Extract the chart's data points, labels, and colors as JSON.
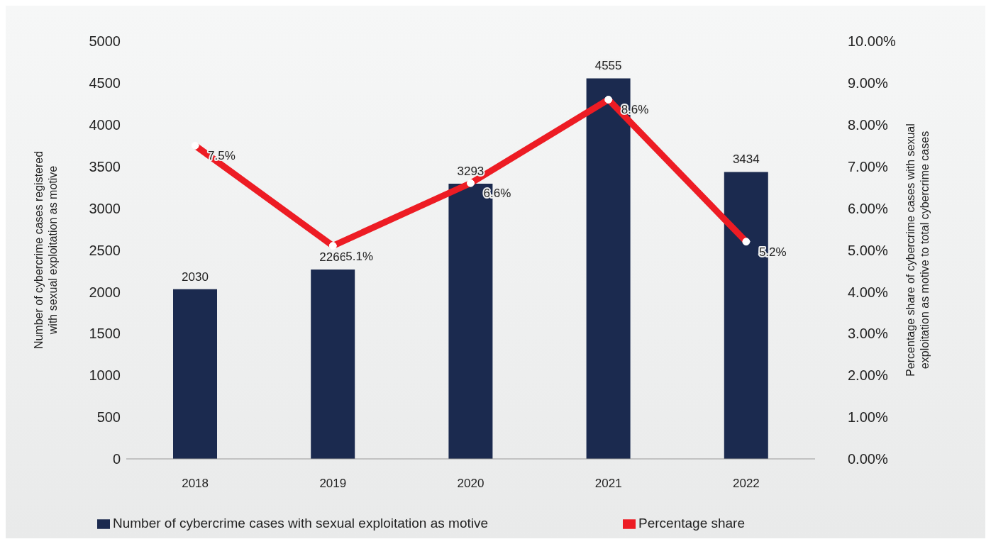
{
  "chart_data": {
    "type": "bar",
    "categories": [
      "2018",
      "2019",
      "2020",
      "2021",
      "2022"
    ],
    "series": [
      {
        "name": "Number of cybercrime cases with sexual exploitation as motive",
        "color": "#1b2a4f",
        "values": [
          2030,
          2266,
          3293,
          4555,
          3434
        ],
        "value_labels": [
          "2030",
          "2266",
          "3293",
          "4555",
          "3434"
        ]
      },
      {
        "name": "Percentage share",
        "type": "line",
        "axis": "y2",
        "color": "#ed1c24",
        "values": [
          7.5,
          5.1,
          6.6,
          8.6,
          5.2
        ],
        "value_labels": [
          "7.5%",
          "5.1%",
          "6.6%",
          "8.6%",
          "5.2%"
        ],
        "marker": "circle"
      }
    ],
    "ylabel": "Number of cybercrime cases registered with sexual exploitation as motive",
    "y2label": "Percentage share of cybercrime cases with sexual exploitation as motive to total cybercrime cases",
    "ylim": [
      0,
      5000
    ],
    "yticks": [
      0,
      500,
      1000,
      1500,
      2000,
      2500,
      3000,
      3500,
      4000,
      4500,
      5000
    ],
    "y2lim": [
      0,
      10
    ],
    "y2ticks": [
      {
        "value": 0,
        "label": "0.00%"
      },
      {
        "value": 1,
        "label": "1.00%"
      },
      {
        "value": 2,
        "label": "2.00%"
      },
      {
        "value": 3,
        "label": "3.00%"
      },
      {
        "value": 4,
        "label": "4.00%"
      },
      {
        "value": 5,
        "label": "5.00%"
      },
      {
        "value": 6,
        "label": "6.00%"
      },
      {
        "value": 7,
        "label": "7.00%"
      },
      {
        "value": 8,
        "label": "8.00%"
      },
      {
        "value": 9,
        "label": "9.00%"
      },
      {
        "value": 10,
        "label": "10.00%"
      }
    ],
    "grid": false,
    "legend": "bottom"
  }
}
